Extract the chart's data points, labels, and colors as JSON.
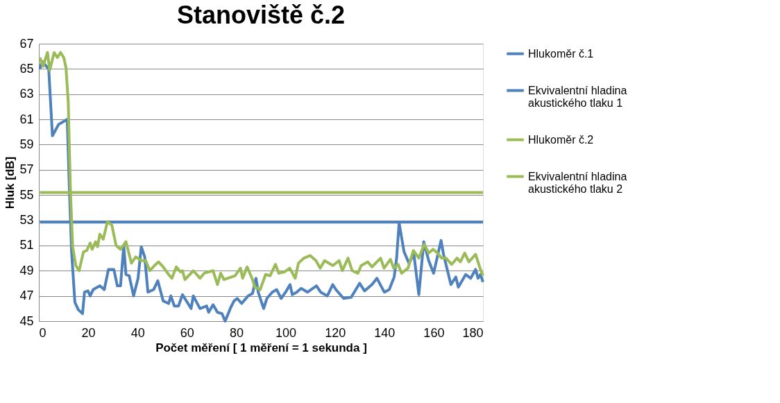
{
  "chart_data": {
    "type": "line",
    "title": "Stanoviště č.2",
    "xlabel": "Počet měření [ 1 měření = 1 sekunda ]",
    "ylabel": "Hluk [dB]",
    "xlim": [
      0,
      180
    ],
    "xticks": [
      0,
      20,
      40,
      60,
      80,
      100,
      120,
      140,
      160,
      180
    ],
    "ylim": [
      45,
      67
    ],
    "yticks": [
      45,
      47,
      49,
      51,
      53,
      55,
      57,
      59,
      61,
      63,
      65,
      67
    ],
    "grid": "y",
    "legend": "right",
    "line_style": "solid",
    "marker": "none",
    "series": [
      {
        "name": "Hlukoměr č.1",
        "color": "#4f81bd",
        "x": [
          0.4,
          1.3,
          4,
          5.5,
          8,
          10.6,
          11.5,
          12.4,
          13.3,
          14.6,
          16,
          17.7,
          18.5,
          19.9,
          20.8,
          22,
          24.7,
          26.5,
          28.2,
          30.4,
          31.8,
          33.1,
          34.4,
          35.3,
          36.6,
          38.4,
          40.2,
          41.5,
          42.9,
          44.2,
          46.5,
          48.2,
          50.4,
          52.6,
          53.5,
          54.9,
          56.6,
          58.2,
          61.7,
          62.6,
          65.3,
          68,
          68.8,
          70.6,
          72.4,
          74.2,
          75.5,
          77.8,
          79.1,
          80.4,
          82.2,
          84.8,
          86.6,
          88,
          88.9,
          91.1,
          92.4,
          94.6,
          96.4,
          98.2,
          100,
          101.8,
          102.7,
          104.5,
          106.3,
          108.9,
          112.5,
          114.2,
          116.9,
          119.1,
          120.4,
          123.5,
          126.6,
          130,
          132,
          135,
          137,
          140,
          142,
          144,
          145,
          146,
          148,
          150,
          152,
          154,
          156,
          158,
          160,
          163,
          164,
          167,
          169,
          170,
          173,
          175,
          177,
          178,
          179,
          180
        ],
        "values": [
          65.0,
          65.6,
          65.0,
          59.7,
          60.6,
          60.9,
          61.0,
          55.3,
          50.4,
          46.5,
          45.9,
          45.6,
          47.3,
          47.4,
          47.0,
          47.5,
          47.8,
          47.5,
          49.1,
          49.1,
          47.8,
          47.8,
          51.0,
          48.7,
          48.6,
          47.0,
          48.4,
          50.9,
          50.1,
          47.3,
          47.5,
          48.2,
          46.6,
          46.4,
          47.0,
          46.2,
          46.2,
          47.1,
          46.0,
          47.0,
          46.0,
          46.2,
          45.7,
          46.3,
          45.7,
          45.6,
          45.0,
          46.1,
          46.6,
          46.8,
          46.4,
          47.0,
          47.2,
          48.4,
          47.3,
          46.0,
          46.8,
          47.3,
          47.5,
          46.8,
          47.3,
          47.9,
          47.1,
          47.3,
          47.6,
          47.3,
          47.8,
          47.3,
          47.0,
          47.9,
          47.5,
          46.8,
          46.9,
          48.0,
          47.4,
          47.9,
          48.4,
          47.3,
          47.5,
          48.5,
          50.0,
          52.8,
          50.5,
          49.6,
          50.3,
          47.1,
          51.3,
          49.8,
          48.8,
          51.4,
          50.3,
          47.9,
          48.5,
          47.7,
          48.7,
          48.4,
          49.1,
          48.4,
          48.7,
          48.1
        ]
      },
      {
        "name": "Ekvivalentní hladina akustického tlaku 1",
        "color": "#4f81bd",
        "x": [
          0.4,
          180
        ],
        "values": [
          52.85,
          52.85
        ]
      },
      {
        "name": "Hlukoměr č.2",
        "color": "#9bbb59",
        "x": [
          0.4,
          1.7,
          3.5,
          4.4,
          6.2,
          7.5,
          8.8,
          10.1,
          11,
          11.9,
          12.8,
          13.7,
          15,
          16.3,
          18.1,
          19.4,
          20.8,
          21.6,
          23,
          23.8,
          24.7,
          26.1,
          27.8,
          29.6,
          31.3,
          33.1,
          35.3,
          37.5,
          39.3,
          41.5,
          43.3,
          45,
          46.8,
          48.5,
          50.4,
          52.6,
          53.9,
          55.7,
          57.4,
          58.2,
          59.2,
          62.6,
          65.3,
          67,
          70.6,
          72.4,
          73.7,
          75,
          79.5,
          81.7,
          82.6,
          84.4,
          86.6,
          87.5,
          89.7,
          91.9,
          93.7,
          95.9,
          97.2,
          99.5,
          101.7,
          103.9,
          105.2,
          107.4,
          110,
          112.3,
          114,
          115.8,
          118.4,
          119.1,
          121.7,
          123,
          125.3,
          127,
          129.3,
          130.6,
          133.3,
          135,
          138.5,
          139.9,
          142.5,
          143.8,
          145.6,
          147,
          149.6,
          151.8,
          154,
          156.2,
          158,
          159.8,
          161.5,
          163.3,
          165,
          167.3,
          169.5,
          170.8,
          172.6,
          174.3,
          177,
          178.8,
          180
        ],
        "values": [
          65.9,
          65.2,
          66.3,
          64.9,
          66.3,
          65.9,
          66.3,
          65.9,
          65.1,
          62.4,
          55.3,
          50.9,
          49.4,
          49.0,
          50.5,
          50.6,
          51.2,
          50.7,
          51.3,
          50.9,
          51.9,
          51.5,
          52.9,
          52.6,
          51.0,
          50.7,
          51.3,
          49.6,
          50.1,
          49.8,
          49.8,
          49.0,
          49.4,
          49.7,
          49.3,
          48.7,
          48.4,
          49.3,
          48.9,
          49.0,
          48.3,
          49.0,
          48.4,
          48.8,
          49.0,
          47.9,
          48.8,
          48.3,
          48.6,
          49.2,
          48.4,
          49.3,
          48.3,
          47.7,
          47.5,
          48.7,
          48.6,
          49.5,
          48.8,
          48.9,
          49.2,
          48.4,
          49.6,
          50.0,
          50.2,
          49.8,
          49.2,
          49.8,
          49.5,
          49.4,
          49.8,
          49.0,
          50.0,
          49.0,
          48.8,
          49.4,
          49.7,
          49.3,
          50.0,
          49.2,
          49.9,
          49.2,
          49.5,
          48.8,
          49.2,
          50.6,
          50.0,
          51.1,
          50.4,
          50.7,
          50.4,
          50.0,
          50.0,
          49.5,
          50.0,
          49.7,
          50.4,
          49.7,
          50.3,
          49.2,
          48.6
        ]
      },
      {
        "name": "Ekvivalentní hladina akustického tlaku 2",
        "color": "#9bbb59",
        "x": [
          0.4,
          180
        ],
        "values": [
          55.2,
          55.2
        ]
      }
    ]
  }
}
